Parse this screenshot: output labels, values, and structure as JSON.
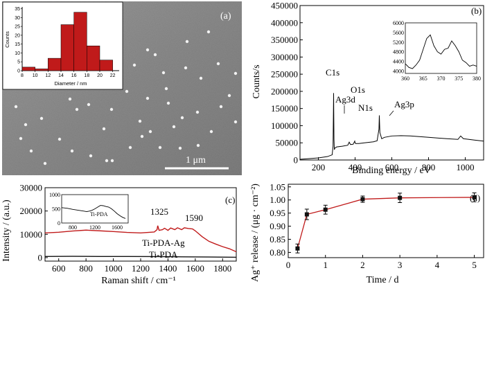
{
  "chart_data": [
    {
      "panel_label": "(a)",
      "type": "bar",
      "scale_bar_label": "1 μm",
      "inset": {
        "type": "bar",
        "xlabel": "Diameter / nm",
        "ylabel": "Counts",
        "xticks": [
          "8",
          "10",
          "12",
          "14",
          "16",
          "18",
          "20",
          "22"
        ],
        "yticks": [
          "0",
          "5",
          "10",
          "15",
          "20",
          "25",
          "30",
          "35"
        ],
        "categories": [
          "9",
          "11",
          "13",
          "15",
          "17",
          "19",
          "21"
        ],
        "values": [
          2,
          1,
          7,
          26,
          33,
          14,
          6
        ],
        "ylim": [
          0,
          36
        ],
        "xlim": [
          8,
          23
        ],
        "bar_color": "#c01a1a"
      }
    },
    {
      "panel_label": "(b)",
      "type": "line",
      "xlabel": "Binding energy / eV",
      "ylabel": "Counts/s",
      "xlim": [
        100,
        1100
      ],
      "ylim": [
        0,
        450000
      ],
      "xticks": [
        "200",
        "400",
        "600",
        "800",
        "1000"
      ],
      "yticks": [
        "0",
        "50000",
        "100000",
        "150000",
        "200000",
        "250000",
        "300000",
        "350000",
        "400000",
        "450000"
      ],
      "annotations": [
        "C1s",
        "Ag3d",
        "N1s",
        "O1s",
        "Ag3p"
      ],
      "series": [
        {
          "x": [
            100,
            150,
            200,
            250,
            275,
            280,
            283,
            285,
            287,
            290,
            300,
            330,
            360,
            368,
            375,
            390,
            398,
            400,
            403,
            420,
            450,
            500,
            520,
            530,
            532,
            535,
            545,
            560,
            600,
            650,
            700,
            800,
            900,
            960,
            975,
            990,
            1050,
            1100
          ],
          "y": [
            2000,
            4000,
            6000,
            10000,
            15000,
            40000,
            195000,
            60000,
            30000,
            35000,
            38000,
            40000,
            43000,
            52000,
            45000,
            46000,
            55000,
            50000,
            48000,
            48000,
            50000,
            53000,
            56000,
            90000,
            130000,
            80000,
            62000,
            66000,
            70000,
            71000,
            70000,
            66000,
            62000,
            60000,
            70000,
            62000,
            58000,
            55000
          ]
        }
      ],
      "inset": {
        "xlim": [
          360,
          380
        ],
        "ylim": [
          3900,
          6000
        ],
        "xticks": [
          "360",
          "365",
          "370",
          "375",
          "380"
        ],
        "yticks": [
          "4000",
          "4400",
          "4800",
          "5200",
          "5600",
          "6000"
        ],
        "x": [
          360,
          361,
          362,
          363,
          364,
          365,
          366,
          367,
          368,
          369,
          370,
          371,
          372,
          373,
          374,
          375,
          376,
          377,
          378,
          379,
          380
        ],
        "y": [
          4300,
          4150,
          4100,
          4250,
          4450,
          4900,
          5350,
          5500,
          5050,
          4800,
          4700,
          4900,
          4950,
          5250,
          5050,
          4800,
          4450,
          4350,
          4200,
          4250,
          4200
        ]
      }
    },
    {
      "panel_label": "(c)",
      "type": "line",
      "xlabel": "Raman shift / cm⁻¹",
      "ylabel": "Intensity / (a.u.)",
      "xlim": [
        500,
        1900
      ],
      "ylim": [
        -1500,
        30000
      ],
      "xticks": [
        "600",
        "800",
        "1000",
        "1200",
        "1400",
        "1600",
        "1800"
      ],
      "yticks": [
        "0",
        "10000",
        "20000",
        "30000"
      ],
      "annotations": [
        "1325",
        "1590"
      ],
      "series": [
        {
          "name": "Ti-PDA-Ag",
          "color": "#c01a1a",
          "x": [
            500,
            600,
            700,
            800,
            900,
            1000,
            1100,
            1200,
            1300,
            1320,
            1325,
            1335,
            1360,
            1375,
            1400,
            1420,
            1450,
            1470,
            1500,
            1520,
            1550,
            1580,
            1600,
            1650,
            1700,
            1750,
            1800,
            1850,
            1900
          ],
          "y": [
            10600,
            10900,
            11400,
            11800,
            11500,
            11200,
            10800,
            10600,
            11000,
            12000,
            13700,
            11700,
            12000,
            12600,
            11700,
            12700,
            12000,
            12800,
            12000,
            12800,
            12500,
            12300,
            11500,
            9000,
            7000,
            5800,
            4700,
            3800,
            2500
          ]
        },
        {
          "name": "Ti-PDA",
          "color": "#111111",
          "x": [
            500,
            700,
            900,
            1100,
            1300,
            1500,
            1700,
            1900
          ],
          "y": [
            500,
            550,
            500,
            480,
            450,
            350,
            250,
            150
          ]
        }
      ],
      "inset": {
        "label": "Ti-PDA",
        "xlim": [
          600,
          1800
        ],
        "ylim": [
          0,
          1000
        ],
        "xticks": [
          "800",
          "1200",
          "1600"
        ],
        "yticks": [
          "0",
          "500",
          "1000"
        ],
        "x": [
          600,
          700,
          800,
          900,
          1000,
          1050,
          1100,
          1150,
          1200,
          1250,
          1300,
          1350,
          1400,
          1450,
          1500,
          1550,
          1600,
          1650,
          1700,
          1750
        ],
        "y": [
          540,
          520,
          480,
          450,
          420,
          400,
          420,
          450,
          500,
          560,
          620,
          610,
          580,
          560,
          500,
          420,
          330,
          260,
          200,
          160
        ]
      }
    },
    {
      "panel_label": "(d)",
      "type": "scatter",
      "xlabel": "Time / d",
      "ylabel": "Ag⁺ release / (μg · cm⁻²)",
      "xlim": [
        0,
        5.25
      ],
      "ylim": [
        0.78,
        1.06
      ],
      "xticks": [
        "0",
        "1",
        "2",
        "3",
        "4",
        "5"
      ],
      "yticks": [
        "0.80",
        "0.85",
        "0.90",
        "0.95",
        "1.00",
        "1.05"
      ],
      "series": [
        {
          "color": "#c01a1a",
          "x": [
            0.25,
            0.5,
            1,
            2,
            3,
            5
          ],
          "y": [
            0.815,
            0.945,
            0.963,
            1.003,
            1.008,
            1.01
          ],
          "err": [
            0.017,
            0.02,
            0.017,
            0.012,
            0.018,
            0.017
          ]
        }
      ]
    }
  ]
}
